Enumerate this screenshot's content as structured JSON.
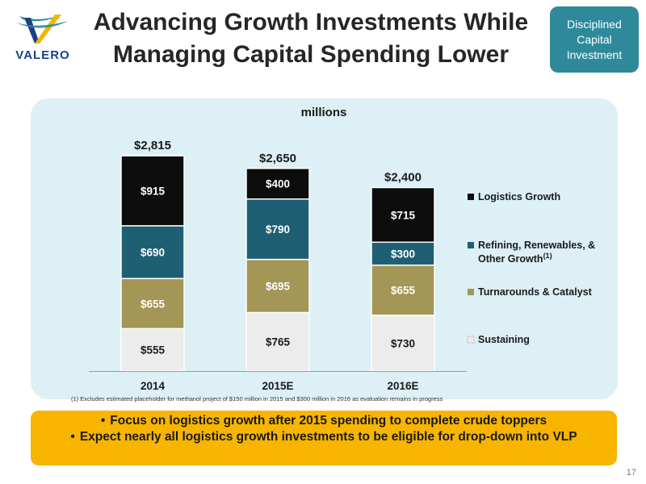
{
  "logo": {
    "text": "VALERO",
    "colors": {
      "blue": "#1b3f8b",
      "gold": "#f5b400",
      "teal": "#2e8a9b"
    }
  },
  "title": "Advancing Growth Investments While Managing Capital Spending Lower",
  "badge": "Disciplined Capital Investment",
  "chart_data": {
    "type": "bar",
    "stacked": true,
    "title": "millions",
    "categories": [
      "2014",
      "2015E",
      "2016E"
    ],
    "series": [
      {
        "name": "Sustaining",
        "values": [
          555,
          765,
          730
        ],
        "labels": [
          "$555",
          "$765",
          "$730"
        ],
        "color": "#ececec",
        "label_color": "#1a1a1a"
      },
      {
        "name": "Turnarounds & Catalyst",
        "values": [
          655,
          695,
          655
        ],
        "labels": [
          "$655",
          "$695",
          "$655"
        ],
        "color": "#a39656",
        "label_color": "#ffffff"
      },
      {
        "name": "Refining, Renewables, & Other Growth",
        "name_sup": "(1)",
        "values": [
          690,
          790,
          300
        ],
        "labels": [
          "$690",
          "$790",
          "$300"
        ],
        "color": "#1f5f73",
        "label_color": "#ffffff"
      },
      {
        "name": "Logistics Growth",
        "values": [
          915,
          400,
          715
        ],
        "labels": [
          "$915",
          "$400",
          "$715"
        ],
        "color": "#0d0d0d",
        "label_color": "#ffffff"
      }
    ],
    "totals": [
      "$2,815",
      "$2,650",
      "$2,400"
    ],
    "legend_order": [
      "Logistics Growth",
      "Refining, Renewables, & Other Growth",
      "Turnarounds & Catalyst",
      "Sustaining"
    ],
    "legend_position": "right",
    "ylim": [
      0,
      3000
    ],
    "grid": false
  },
  "footnote": "(1) Excludes estimated placeholder for methanol project of $150 million in 2015 and $300 million in 2016 as evaluation remains in progress",
  "callout": {
    "bullets": [
      "Focus on logistics growth after 2015 spending to complete crude toppers",
      "Expect nearly all logistics growth investments to be eligible for drop-down into VLP"
    ]
  },
  "page_number": "17"
}
